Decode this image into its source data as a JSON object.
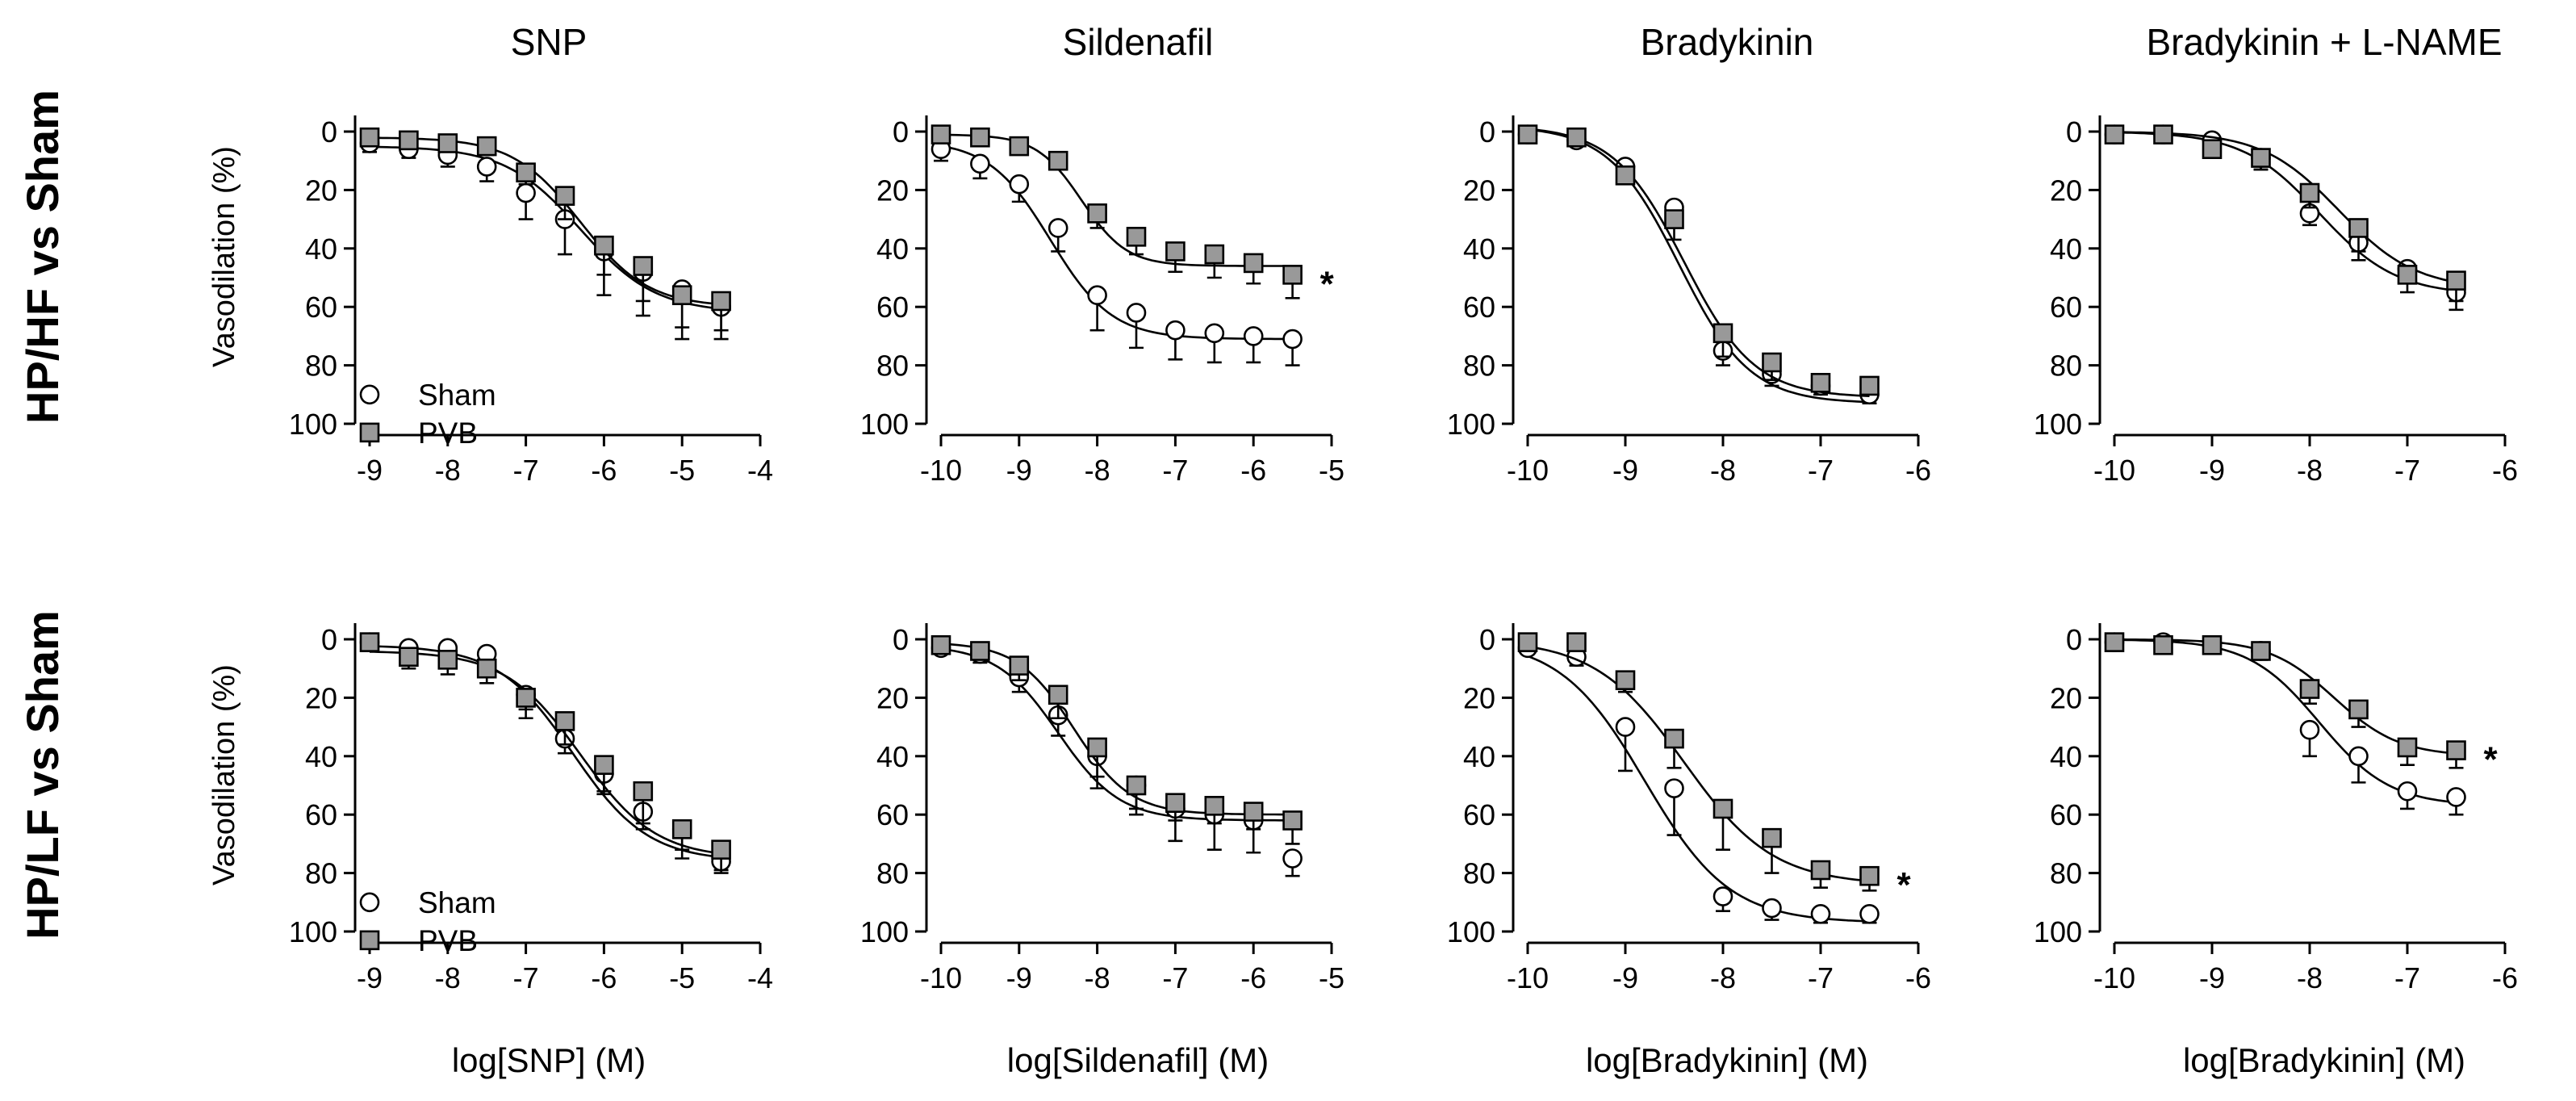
{
  "colors": {
    "sham_fill": "#ffffff",
    "pvb_fill": "#999999",
    "stroke": "#000000"
  },
  "column_titles": [
    "SNP",
    "Sildenafil",
    "Bradykinin",
    "Bradykinin + L-NAME"
  ],
  "row_labels": [
    "HP/HF vs Sham",
    "HP/LF vs Sham"
  ],
  "x_labels": [
    "log[SNP] (M)",
    "log[Sildenafil] (M)",
    "log[Bradykinin] (M)",
    "log[Bradykinin] (M)"
  ],
  "y_label": "Vasodilation (%)",
  "legend": {
    "sham": "Sham",
    "pvb": "PVB"
  },
  "chart_data": [
    {
      "type": "scatter",
      "panel": "HP/HF vs Sham · SNP",
      "xlim": [
        -9,
        -4
      ],
      "ylim": [
        0,
        100
      ],
      "y_inverted": true,
      "xticks": [
        "-9",
        "-8",
        "-7",
        "-6",
        "-5",
        "-4"
      ],
      "yticks": [
        "0",
        "20",
        "40",
        "60",
        "80",
        "100"
      ],
      "legend": "bottom-left",
      "significance": "",
      "series": [
        {
          "name": "Sham",
          "marker": "circle",
          "x": [
            -9,
            -8.5,
            -8,
            -7.5,
            -7,
            -6.5,
            -6,
            -5.5,
            -5,
            -4.5
          ],
          "y": [
            4,
            6,
            8,
            12,
            21,
            30,
            41,
            48,
            54,
            60
          ],
          "err": [
            3,
            3,
            4,
            5,
            9,
            12,
            15,
            15,
            13,
            11
          ],
          "fit": {
            "bottom": 5,
            "top": 62,
            "logec50": -6.3,
            "hill": 0.9
          }
        },
        {
          "name": "PVB",
          "marker": "square",
          "x": [
            -9,
            -8.5,
            -8,
            -7.5,
            -7,
            -6.5,
            -6,
            -5.5,
            -5,
            -4.5
          ],
          "y": [
            2,
            3,
            4,
            5,
            14,
            22,
            39,
            46,
            56,
            58
          ],
          "err": [
            2,
            2,
            2,
            3,
            4,
            8,
            10,
            12,
            15,
            10
          ],
          "fit": {
            "bottom": 2,
            "top": 60,
            "logec50": -6.3,
            "hill": 1.0
          }
        }
      ]
    },
    {
      "type": "scatter",
      "panel": "HP/HF vs Sham · Sildenafil",
      "xlim": [
        -10,
        -5
      ],
      "ylim": [
        0,
        100
      ],
      "y_inverted": true,
      "xticks": [
        "-10",
        "-9",
        "-8",
        "-7",
        "-6",
        "-5"
      ],
      "yticks": [
        "0",
        "20",
        "40",
        "60",
        "80",
        "100"
      ],
      "legend": "",
      "significance": "*",
      "series": [
        {
          "name": "",
          "marker": "circle",
          "x": [
            -10,
            -9.5,
            -9,
            -8.5,
            -8,
            -7.5,
            -7,
            -6.5,
            -6,
            -5.5
          ],
          "y": [
            6,
            11,
            18,
            33,
            56,
            62,
            68,
            69,
            70,
            71
          ],
          "err": [
            4,
            5,
            6,
            8,
            12,
            12,
            10,
            10,
            9,
            9
          ],
          "fit": {
            "bottom": 3,
            "top": 71,
            "logec50": -8.6,
            "hill": 1.1
          }
        },
        {
          "name": "",
          "marker": "square",
          "x": [
            -10,
            -9.5,
            -9,
            -8.5,
            -8,
            -7.5,
            -7,
            -6.5,
            -6,
            -5.5
          ],
          "y": [
            1,
            2,
            5,
            10,
            28,
            36,
            41,
            42,
            45,
            49
          ],
          "err": [
            1,
            1,
            2,
            3,
            5,
            6,
            7,
            8,
            7,
            8
          ],
          "fit": {
            "bottom": 1,
            "top": 46,
            "logec50": -8.2,
            "hill": 1.5
          }
        }
      ]
    },
    {
      "type": "scatter",
      "panel": "HP/HF vs Sham · Bradykinin",
      "xlim": [
        -10,
        -6
      ],
      "ylim": [
        0,
        100
      ],
      "y_inverted": true,
      "xticks": [
        "-10",
        "-9",
        "-8",
        "-7",
        "-6"
      ],
      "yticks": [
        "0",
        "20",
        "40",
        "60",
        "80",
        "100"
      ],
      "legend": "",
      "significance": "",
      "series": [
        {
          "name": "",
          "marker": "circle",
          "x": [
            -10,
            -9.5,
            -9,
            -8.5,
            -8,
            -7.5,
            -7,
            -6.5
          ],
          "y": [
            1,
            3,
            12,
            26,
            75,
            83,
            87,
            90
          ],
          "err": [
            2,
            2,
            3,
            4,
            5,
            4,
            3,
            3
          ],
          "fit": {
            "bottom": -2,
            "top": 93,
            "logec50": -8.45,
            "hill": 1.2
          }
        },
        {
          "name": "",
          "marker": "square",
          "x": [
            -10,
            -9.5,
            -9,
            -8.5,
            -8,
            -7.5,
            -7,
            -6.5
          ],
          "y": [
            1,
            2,
            15,
            30,
            69,
            79,
            86,
            87
          ],
          "err": [
            2,
            2,
            3,
            7,
            8,
            6,
            3,
            2
          ],
          "fit": {
            "bottom": -2,
            "top": 91,
            "logec50": -8.4,
            "hill": 1.2
          }
        }
      ]
    },
    {
      "type": "scatter",
      "panel": "HP/HF vs Sham · Bradykinin + L-NAME",
      "xlim": [
        -10,
        -6
      ],
      "ylim": [
        0,
        100
      ],
      "y_inverted": true,
      "xticks": [
        "-10",
        "-9",
        "-8",
        "-7",
        "-6"
      ],
      "yticks": [
        "0",
        "20",
        "40",
        "60",
        "80",
        "100"
      ],
      "legend": "",
      "significance": "",
      "series": [
        {
          "name": "",
          "marker": "circle",
          "x": [
            -10,
            -9.5,
            -9,
            -8.5,
            -8,
            -7.5,
            -7,
            -6.5
          ],
          "y": [
            1,
            1,
            3,
            9,
            28,
            38,
            47,
            55
          ],
          "err": [
            2,
            2,
            3,
            4,
            4,
            6,
            5,
            6
          ],
          "fit": {
            "bottom": 0,
            "top": 56,
            "logec50": -7.9,
            "hill": 1.1
          }
        },
        {
          "name": "",
          "marker": "square",
          "x": [
            -10,
            -9.5,
            -9,
            -8.5,
            -8,
            -7.5,
            -7,
            -6.5
          ],
          "y": [
            1,
            1,
            6,
            9,
            21,
            33,
            49,
            51
          ],
          "err": [
            2,
            2,
            3,
            4,
            5,
            8,
            6,
            7
          ],
          "fit": {
            "bottom": 0,
            "top": 54,
            "logec50": -7.7,
            "hill": 1.1
          }
        }
      ]
    },
    {
      "type": "scatter",
      "panel": "HP/LF vs Sham · SNP",
      "xlim": [
        -9,
        -4
      ],
      "ylim": [
        0,
        100
      ],
      "y_inverted": true,
      "xticks": [
        "-9",
        "-8",
        "-7",
        "-6",
        "-5",
        "-4"
      ],
      "yticks": [
        "0",
        "20",
        "40",
        "60",
        "80",
        "100"
      ],
      "legend": "bottom-left",
      "significance": "",
      "series": [
        {
          "name": "Sham",
          "marker": "circle",
          "x": [
            -9,
            -8.5,
            -8,
            -7.5,
            -7,
            -6.5,
            -6,
            -5.5,
            -5,
            -4.5
          ],
          "y": [
            1,
            3,
            3,
            5,
            19,
            34,
            46,
            59,
            65,
            76
          ],
          "err": [
            2,
            2,
            3,
            3,
            5,
            5,
            6,
            6,
            7,
            3
          ],
          "fit": {
            "bottom": 2,
            "top": 76,
            "logec50": -6.4,
            "hill": 0.9
          }
        },
        {
          "name": "PVB",
          "marker": "square",
          "x": [
            -9,
            -8.5,
            -8,
            -7.5,
            -7,
            -6.5,
            -6,
            -5.5,
            -5,
            -4.5
          ],
          "y": [
            1,
            6,
            7,
            10,
            20,
            28,
            43,
            52,
            65,
            72
          ],
          "err": [
            1,
            4,
            5,
            5,
            7,
            8,
            10,
            11,
            10,
            8
          ],
          "fit": {
            "bottom": 4,
            "top": 75,
            "logec50": -6.3,
            "hill": 0.9
          }
        }
      ]
    },
    {
      "type": "scatter",
      "panel": "HP/LF vs Sham · Sildenafil",
      "xlim": [
        -10,
        -5
      ],
      "ylim": [
        0,
        100
      ],
      "y_inverted": true,
      "xticks": [
        "-10",
        "-9",
        "-8",
        "-7",
        "-6",
        "-5"
      ],
      "yticks": [
        "0",
        "20",
        "40",
        "60",
        "80",
        "100"
      ],
      "legend": "",
      "significance": "",
      "series": [
        {
          "name": "",
          "marker": "circle",
          "x": [
            -10,
            -9.5,
            -9,
            -8.5,
            -8,
            -7.5,
            -7,
            -6.5,
            -6,
            -5.5
          ],
          "y": [
            3,
            5,
            13,
            26,
            40,
            50,
            58,
            60,
            62,
            75
          ],
          "err": [
            2,
            3,
            5,
            7,
            11,
            10,
            11,
            12,
            11,
            6
          ],
          "fit": {
            "bottom": 2,
            "top": 62,
            "logec50": -8.5,
            "hill": 1.1
          }
        },
        {
          "name": "",
          "marker": "square",
          "x": [
            -10,
            -9.5,
            -9,
            -8.5,
            -8,
            -7.5,
            -7,
            -6.5,
            -6,
            -5.5
          ],
          "y": [
            2,
            4,
            9,
            19,
            37,
            50,
            56,
            57,
            59,
            62
          ],
          "err": [
            2,
            3,
            5,
            8,
            10,
            8,
            6,
            6,
            6,
            8
          ],
          "fit": {
            "bottom": 1,
            "top": 60,
            "logec50": -8.3,
            "hill": 1.2
          }
        }
      ]
    },
    {
      "type": "scatter",
      "panel": "HP/LF vs Sham · Bradykinin",
      "xlim": [
        -10,
        -6
      ],
      "ylim": [
        0,
        100
      ],
      "y_inverted": true,
      "xticks": [
        "-10",
        "-9",
        "-8",
        "-7",
        "-6"
      ],
      "yticks": [
        "0",
        "20",
        "40",
        "60",
        "80",
        "100"
      ],
      "legend": "",
      "significance": "*",
      "series": [
        {
          "name": "",
          "marker": "circle",
          "x": [
            -10,
            -9.5,
            -9,
            -8.5,
            -8,
            -7.5,
            -7,
            -6.5
          ],
          "y": [
            3,
            6,
            30,
            51,
            88,
            92,
            94,
            94
          ],
          "err": [
            2,
            3,
            15,
            16,
            5,
            4,
            3,
            3
          ],
          "fit": {
            "bottom": 0,
            "top": 97,
            "logec50": -8.8,
            "hill": 1.0
          }
        },
        {
          "name": "",
          "marker": "square",
          "x": [
            -10,
            -9.5,
            -9,
            -8.5,
            -8,
            -7.5,
            -7,
            -6.5
          ],
          "y": [
            1,
            1,
            14,
            34,
            58,
            68,
            79,
            81
          ],
          "err": [
            1,
            2,
            4,
            10,
            14,
            12,
            6,
            5
          ],
          "fit": {
            "bottom": 0,
            "top": 84,
            "logec50": -8.4,
            "hill": 0.95
          }
        }
      ]
    },
    {
      "type": "scatter",
      "panel": "HP/LF vs Sham · Bradykinin + L-NAME",
      "xlim": [
        -10,
        -6
      ],
      "ylim": [
        0,
        100
      ],
      "y_inverted": true,
      "xticks": [
        "-10",
        "-9",
        "-8",
        "-7",
        "-6"
      ],
      "yticks": [
        "0",
        "20",
        "40",
        "60",
        "80",
        "100"
      ],
      "legend": "",
      "significance": "*",
      "series": [
        {
          "name": "",
          "marker": "circle",
          "x": [
            -10,
            -9.5,
            -9,
            -8.5,
            -8,
            -7.5,
            -7,
            -6.5
          ],
          "y": [
            1,
            1,
            2,
            4,
            31,
            40,
            52,
            54
          ],
          "err": [
            2,
            2,
            2,
            3,
            9,
            9,
            6,
            6
          ],
          "fit": {
            "bottom": 0,
            "top": 57,
            "logec50": -7.9,
            "hill": 1.2
          }
        },
        {
          "name": "",
          "marker": "square",
          "x": [
            -10,
            -9.5,
            -9,
            -8.5,
            -8,
            -7.5,
            -7,
            -6.5
          ],
          "y": [
            1,
            2,
            2,
            4,
            17,
            24,
            37,
            38
          ],
          "err": [
            1,
            1,
            2,
            3,
            5,
            6,
            6,
            6
          ],
          "fit": {
            "bottom": 0,
            "top": 40,
            "logec50": -7.75,
            "hill": 1.3
          }
        }
      ]
    }
  ]
}
